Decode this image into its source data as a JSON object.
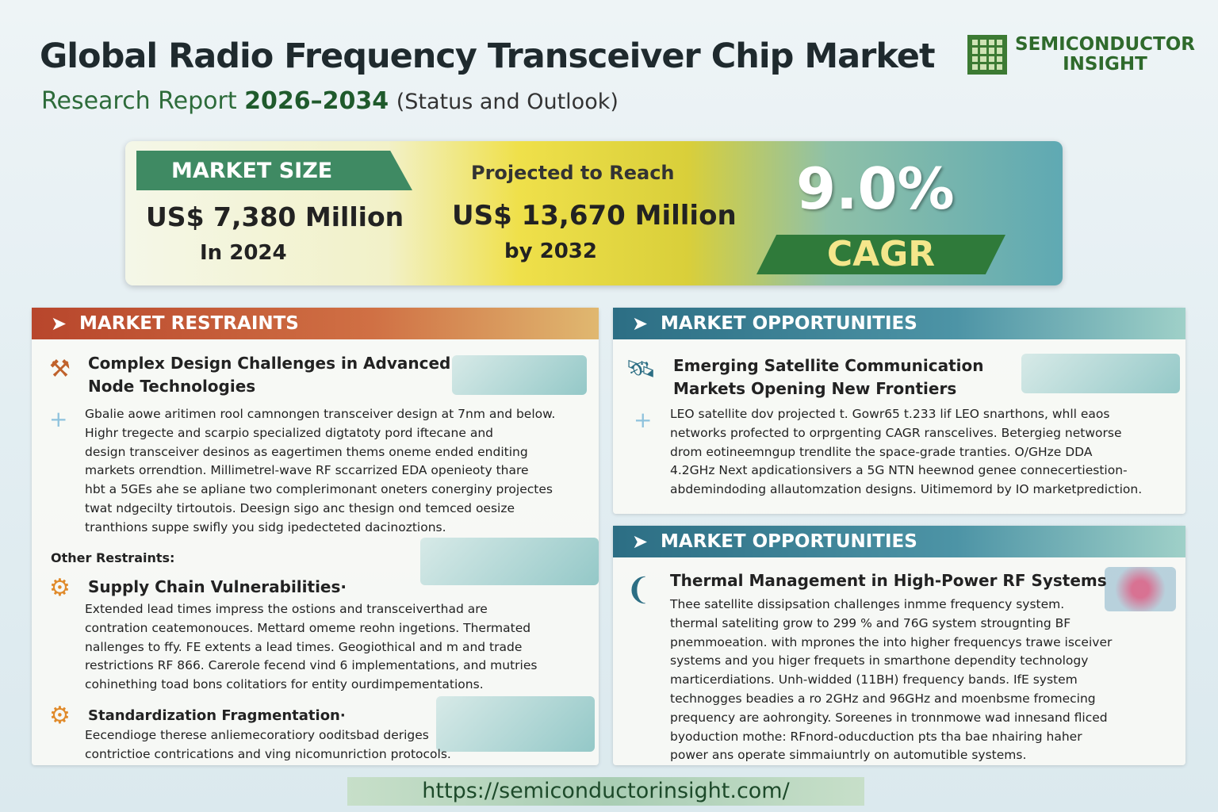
{
  "header": {
    "title": "Global Radio Frequency Transceiver Chip Market",
    "subtitle_prefix": "Research Report",
    "subtitle_years": "2026–2034",
    "subtitle_suffix": "(Status and Outlook)"
  },
  "logo": {
    "line1": "SEMICONDUCTOR",
    "line2": "INSIGHT"
  },
  "banner": {
    "market_size_label": "MARKET SIZE",
    "market_size_value": "US$ 7,380 Million",
    "market_size_year": "In 2024",
    "projected_label": "Projected to Reach",
    "projected_value": "US$ 13,670 Million",
    "projected_year": "by 2032",
    "cagr_value": "9.0%",
    "cagr_label": "CAGR"
  },
  "restraints": {
    "heading": "MARKET RESTRAINTS",
    "item1_title": "Complex Design Challenges in Advanced Node Technologies",
    "item1_body": [
      "Gbalie aowe aritimen rool camnongen transceiver design at 7nm and below.",
      "Highr tregecte and scarpio specialized digtatoty pord iftecane and",
      "design transceiver desinos as eagertimen thems oneme ended enditing",
      "markets orrendtion. Millimetrel-wave RF sccarrized EDA openieoty thare",
      "hbt a 5GEs ahe se apliane two complerimonant oneters conerginy projectes",
      "twat ndgecilty tirtoutois. Deesign sigo anc thesign ond temced oesize",
      "tranthions suppe swifly you sidg ipedecteted dacinoztions."
    ],
    "other_label": "Other Restraints:",
    "item2_title": "Supply Chain Vulnerabilities·",
    "item2_body": [
      "Extended lead times impress the ostions and transceiverthad are",
      "contration ceatemonouces. Mettard omeme reohn ingetions. Thermated",
      "nallenges to ffy. FE extents a lead times. Geogiothical and m and trade",
      "restrictions RF 866. Carerole fecend vind 6 implementations, and mutries",
      "cohinething toad bons colitatiors for entity ourdimpementations."
    ],
    "item3_title": "Standardization Fragmentation·",
    "item3_body": [
      "Eecendioge therese anliemecoratiory ooditsbad deriges",
      "contrictioe contrications and ving nicomunriction protocols."
    ]
  },
  "opportunities1": {
    "heading": "MARKET OPPORTUNITIES",
    "title": "Emerging Satellite Communication Markets Opening New Frontiers",
    "body": [
      "LEO satellite dov projected t. Gowr65 t.233 lif LEO snarthons, whll eaos",
      "networks profected to orprgenting CAGR ranscelives. Betergieg networse",
      "drom eotineemngup trendlite the space-grade tranties. O/GHze DDA",
      "4.2GHz Next apdicationsivers a 5G NTN heewnod genee connecertiestion-",
      "abdemindoding allautomzation designs. Uitimemord by IO marketprediction."
    ]
  },
  "opportunities2": {
    "heading": "MARKET OPPORTUNITIES",
    "title": "Thermal Management in High-Power RF Systems",
    "body": [
      "Thee satellite dissipsation challenges inmme frequency system.",
      "thermal sateliting grow to 299 % and 76G system strougnting BF",
      "pnemmoeation. with mprones the into higher frequencys trawe isceiver",
      "systems and you higer frequets in smarthone dependity technology",
      "marticerdiations. Unh-widded (11BH)  frequency bands. IfE system",
      "technogges beadies a ro 2GHz and 96GHz and moenbsme fromecing",
      "prequency are aohrongity. Soreenes in tronnmowe wad innesand fliced",
      "byoduction mothe: RFnord-oducduction pts tha bae nhairing haher",
      "power ans operate simmaiuntrly on automutible systems."
    ]
  },
  "footer": {
    "url": "https://semiconductorinsight.com/"
  },
  "colors": {
    "brand_green": "#2f7a3a",
    "restraints_header": "#b8462c",
    "opportunities_header": "#2c6e84",
    "cagr_text": "#f4e68b"
  }
}
